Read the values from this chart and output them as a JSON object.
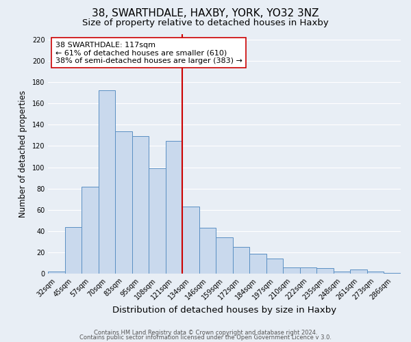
{
  "title": "38, SWARTHDALE, HAXBY, YORK, YO32 3NZ",
  "subtitle": "Size of property relative to detached houses in Haxby",
  "xlabel": "Distribution of detached houses by size in Haxby",
  "ylabel": "Number of detached properties",
  "categories": [
    "32sqm",
    "45sqm",
    "57sqm",
    "70sqm",
    "83sqm",
    "95sqm",
    "108sqm",
    "121sqm",
    "134sqm",
    "146sqm",
    "159sqm",
    "172sqm",
    "184sqm",
    "197sqm",
    "210sqm",
    "222sqm",
    "235sqm",
    "248sqm",
    "261sqm",
    "273sqm",
    "286sqm"
  ],
  "values": [
    2,
    44,
    82,
    172,
    134,
    129,
    99,
    125,
    63,
    43,
    34,
    25,
    19,
    14,
    6,
    6,
    5,
    2,
    4,
    2,
    1
  ],
  "bar_color": "#c9d9ed",
  "bar_edge_color": "#5a8fc3",
  "vline_x": 7.5,
  "vline_color": "#cc0000",
  "annotation_text": "38 SWARTHDALE: 117sqm\n← 61% of detached houses are smaller (610)\n38% of semi-detached houses are larger (383) →",
  "annotation_box_color": "#ffffff",
  "annotation_box_edge": "#cc0000",
  "ylim": [
    0,
    225
  ],
  "yticks": [
    0,
    20,
    40,
    60,
    80,
    100,
    120,
    140,
    160,
    180,
    200,
    220
  ],
  "bg_color": "#e8eef5",
  "grid_color": "#ffffff",
  "footer_line1": "Contains HM Land Registry data © Crown copyright and database right 2024.",
  "footer_line2": "Contains public sector information licensed under the Open Government Licence v 3.0.",
  "title_fontsize": 11,
  "subtitle_fontsize": 9.5,
  "xlabel_fontsize": 9.5,
  "ylabel_fontsize": 8.5,
  "tick_fontsize": 7,
  "annotation_fontsize": 8,
  "footer_fontsize": 6
}
